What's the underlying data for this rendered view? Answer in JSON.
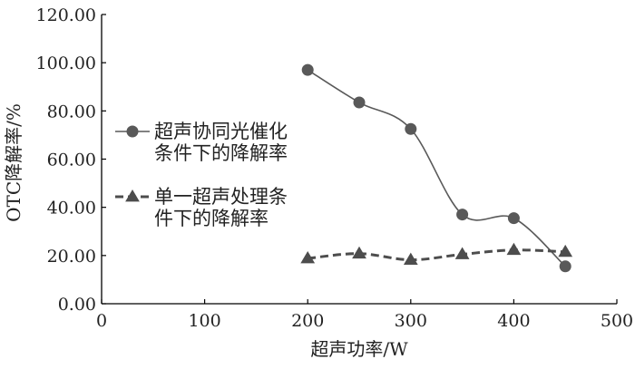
{
  "chart_data": {
    "type": "line",
    "title": "",
    "xlabel": "超声功率/W",
    "ylabel": "OTC降解率/%",
    "xlim": [
      0,
      500
    ],
    "ylim": [
      0,
      120
    ],
    "x_ticks": [
      "0",
      "100",
      "200",
      "300",
      "400",
      "500"
    ],
    "y_ticks": [
      "0.00",
      "20.00",
      "40.00",
      "60.00",
      "80.00",
      "100.00",
      "120.00"
    ],
    "grid": false,
    "legend_position": "left-center",
    "series": [
      {
        "name_lines": [
          "超声协同光催化",
          "条件下的降解率"
        ],
        "x": [
          200,
          250,
          300,
          350,
          400,
          450
        ],
        "values": [
          97.0,
          83.5,
          72.5,
          37.0,
          35.5,
          15.5
        ],
        "marker": "circle",
        "line_style": "solid",
        "color": "#595959"
      },
      {
        "name_lines": [
          "单一超声处理条",
          "件下的降解率"
        ],
        "x": [
          200,
          250,
          300,
          350,
          400,
          450
        ],
        "values": [
          18.8,
          20.8,
          18.2,
          20.5,
          22.3,
          21.5
        ],
        "marker": "triangle",
        "line_style": "dashed",
        "color": "#4d4d4d"
      }
    ]
  }
}
